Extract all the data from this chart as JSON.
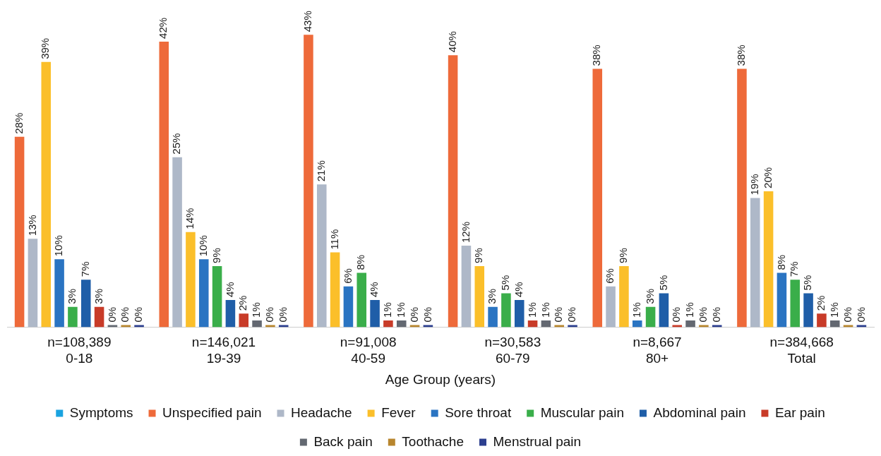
{
  "chart_data": {
    "type": "bar",
    "xlabel": "Age Group (years)",
    "categories": [
      "n=108,389\n0-18",
      "n=146,021\n19-39",
      "n=91,008\n40-59",
      "n=30,583\n60-79",
      "n=8,667\n80+",
      "n=384,668\nTotal"
    ],
    "series": [
      {
        "name": "Symptoms",
        "color": "#1aa3e0",
        "values": [
          null,
          null,
          null,
          null,
          null,
          null
        ],
        "value_labels": [
          null,
          null,
          null,
          null,
          null,
          null
        ]
      },
      {
        "name": "Unspecified pain",
        "color": "#ee6a3a",
        "values": [
          28,
          42,
          43,
          40,
          38,
          38
        ],
        "value_labels": [
          "28%",
          "42%",
          "43%",
          "40%",
          "38%",
          "38%"
        ]
      },
      {
        "name": "Headache",
        "color": "#aeb8c8",
        "values": [
          13,
          25,
          21,
          12,
          6,
          19
        ],
        "value_labels": [
          "13%",
          "25%",
          "21%",
          "12%",
          "6%",
          "19%"
        ]
      },
      {
        "name": "Fever",
        "color": "#fbbf2a",
        "values": [
          39,
          14,
          11,
          9,
          9,
          20
        ],
        "value_labels": [
          "39%",
          "14%",
          "11%",
          "9%",
          "9%",
          "20%"
        ]
      },
      {
        "name": "Sore throat",
        "color": "#2a74c2",
        "values": [
          10,
          10,
          6,
          3,
          1,
          8
        ],
        "value_labels": [
          "10%",
          "10%",
          "6%",
          "3%",
          "1%",
          "8%"
        ]
      },
      {
        "name": "Muscular pain",
        "color": "#3aae4a",
        "values": [
          3,
          9,
          8,
          5,
          3,
          7
        ],
        "value_labels": [
          "3%",
          "9%",
          "8%",
          "5%",
          "3%",
          "7%"
        ]
      },
      {
        "name": "Abdominal pain",
        "color": "#1f5ea8",
        "values": [
          7,
          4,
          4,
          4,
          5,
          5
        ],
        "value_labels": [
          "7%",
          "4%",
          "4%",
          "4%",
          "5%",
          "5%"
        ]
      },
      {
        "name": "Ear pain",
        "color": "#c83b28",
        "values": [
          3,
          2,
          1,
          1,
          0,
          2
        ],
        "value_labels": [
          "3%",
          "2%",
          "1%",
          "1%",
          "0%",
          "2%"
        ]
      },
      {
        "name": "Back pain",
        "color": "#636871",
        "values": [
          0,
          1,
          1,
          1,
          1,
          1
        ],
        "value_labels": [
          "0%",
          "1%",
          "1%",
          "1%",
          "1%",
          "1%"
        ]
      },
      {
        "name": "Toothache",
        "color": "#b8862e",
        "values": [
          0,
          0,
          0,
          0,
          0,
          0
        ],
        "value_labels": [
          "0%",
          "0%",
          "0%",
          "0%",
          "0%",
          "0%"
        ]
      },
      {
        "name": "Menstrual pain",
        "color": "#2c3f8f",
        "values": [
          0,
          0,
          0,
          0,
          0,
          0
        ],
        "value_labels": [
          "0%",
          "0%",
          "0%",
          "0%",
          "0%",
          "0%"
        ]
      }
    ],
    "grid": false,
    "legend": "bottom",
    "tick_labels": "x"
  }
}
